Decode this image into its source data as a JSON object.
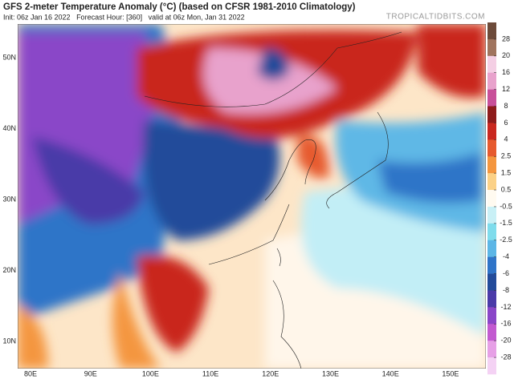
{
  "header": {
    "title": "GFS 2-meter Temperature Anomaly (°C) (based on CFSR 1981-2010 Climatology)",
    "subtitle": "Init: 06z Jan 16 2022   Forecast Hour: [360]   valid at 06z Mon, Jan 31 2022",
    "watermark": "TROPICALTIDBITS.COM"
  },
  "map": {
    "lat_labels": [
      "50N",
      "40N",
      "30N",
      "20N",
      "10N"
    ],
    "lon_labels": [
      "80E",
      "90E",
      "100E",
      "110E",
      "120E",
      "130E",
      "140E",
      "150E"
    ]
  },
  "colorbar": {
    "ticks": [
      28,
      20,
      16,
      12,
      8,
      6,
      4,
      2.5,
      1.5,
      0.5,
      -0.5,
      -1.5,
      -2.5,
      -4,
      -6,
      -8,
      -12,
      -16,
      -20,
      -28
    ],
    "colors": [
      "#6d4b3a",
      "#a0745e",
      "#f4cfe4",
      "#e8a2cc",
      "#c8509a",
      "#8e1b1b",
      "#c9281f",
      "#e65a2e",
      "#f4963f",
      "#fbd187",
      "#fffaf0",
      "#c9f0f6",
      "#7fdcec",
      "#5cb6e6",
      "#2f74c8",
      "#234b9a",
      "#4a3aa8",
      "#8a46c8",
      "#c25ad0",
      "#e6a0e6",
      "#f4d2f4"
    ]
  }
}
